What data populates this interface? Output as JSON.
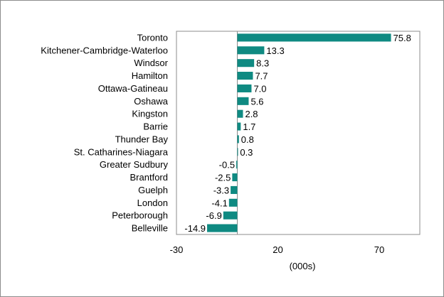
{
  "chart_data": {
    "type": "bar",
    "orientation": "horizontal",
    "categories": [
      "Toronto",
      "Kitchener-Cambridge-Waterloo",
      "Windsor",
      "Hamilton",
      "Ottawa-Gatineau",
      "Oshawa",
      "Kingston",
      "Barrie",
      "Thunder Bay",
      "St. Catharines-Niagara",
      "Greater Sudbury",
      "Brantford",
      "Guelph",
      "London",
      "Peterborough",
      "Belleville"
    ],
    "values": [
      75.8,
      13.3,
      8.3,
      7.7,
      7.0,
      5.6,
      2.8,
      1.7,
      0.8,
      0.3,
      -0.5,
      -2.5,
      -3.3,
      -4.1,
      -6.9,
      -14.9
    ],
    "value_labels": [
      "75.8",
      "13.3",
      "8.3",
      "7.7",
      "7.0",
      "5.6",
      "2.8",
      "1.7",
      "0.8",
      "0.3",
      "-0.5",
      "-2.5",
      "-3.3",
      "-4.1",
      "-6.9",
      "-14.9"
    ],
    "xlabel": "(000s)",
    "xlim": [
      -30,
      90
    ],
    "xticks": [
      -30,
      20,
      70
    ],
    "xtick_labels": [
      "-30",
      "20",
      "70"
    ],
    "bar_color": "#0f8a82",
    "grid": false,
    "legend": "none"
  }
}
